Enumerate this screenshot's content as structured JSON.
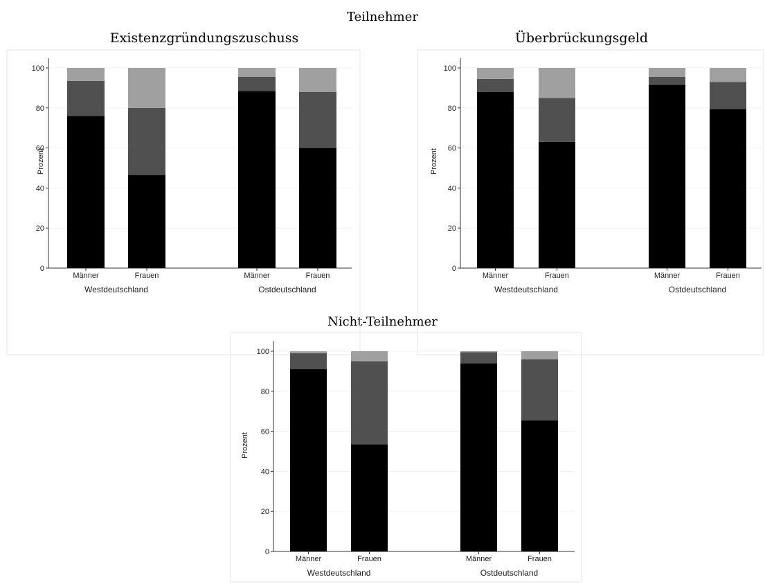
{
  "figure": {
    "group_title_top": "Teilnehmer",
    "group_title_bottom": "Nicht-Teilnehmer"
  },
  "colors": {
    "segment_1": "#000000",
    "segment_2": "#505050",
    "segment_3": "#a0a0a0",
    "grid": "#eef0f3",
    "frame": "#e6e6e6"
  },
  "chart_data": [
    {
      "type": "bar",
      "stacked": true,
      "title": "Existenzgründungszuschuss",
      "ylabel": "Prozent",
      "ylim": [
        0,
        100
      ],
      "yticks": [
        "0",
        "20",
        "40",
        "60",
        "80",
        "100"
      ],
      "grid": true,
      "groups": [
        "Westdeutschland",
        "Ostdeutschland"
      ],
      "categories": [
        "Männer",
        "Frauen",
        "Männer",
        "Frauen"
      ],
      "category_group": [
        0,
        0,
        1,
        1
      ],
      "series": [
        {
          "values": [
            76,
            46.5,
            88.5,
            60
          ]
        },
        {
          "values": [
            17.5,
            33.5,
            7,
            28
          ]
        },
        {
          "values": [
            6.5,
            20,
            4.5,
            12
          ]
        }
      ]
    },
    {
      "type": "bar",
      "stacked": true,
      "title": "Überbrückungsgeld",
      "ylabel": "Prozent",
      "ylim": [
        0,
        100
      ],
      "yticks": [
        "0",
        "20",
        "40",
        "60",
        "80",
        "100"
      ],
      "grid": true,
      "groups": [
        "Westdeutschland",
        "Ostdeutschland"
      ],
      "categories": [
        "Männer",
        "Frauen",
        "Männer",
        "Frauen"
      ],
      "category_group": [
        0,
        0,
        1,
        1
      ],
      "series": [
        {
          "values": [
            88,
            63,
            91.5,
            79.5
          ]
        },
        {
          "values": [
            6.5,
            22,
            4,
            13.5
          ]
        },
        {
          "values": [
            5.5,
            15,
            4.5,
            7
          ]
        }
      ]
    },
    {
      "type": "bar",
      "stacked": true,
      "title": "",
      "ylabel": "Prozent",
      "ylim": [
        0,
        100
      ],
      "yticks": [
        "0",
        "20",
        "40",
        "60",
        "80",
        "100"
      ],
      "grid": true,
      "groups": [
        "Westdeutschland",
        "Ostdeutschland"
      ],
      "categories": [
        "Männer",
        "Frauen",
        "Männer",
        "Frauen"
      ],
      "category_group": [
        0,
        0,
        1,
        1
      ],
      "series": [
        {
          "values": [
            91,
            53.5,
            94,
            65.5
          ]
        },
        {
          "values": [
            8,
            41.5,
            5.5,
            30.5
          ]
        },
        {
          "values": [
            1,
            5,
            0.5,
            4
          ]
        }
      ]
    }
  ]
}
